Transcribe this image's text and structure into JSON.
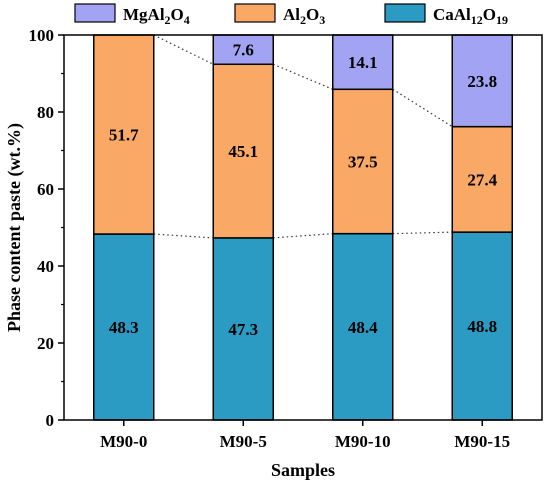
{
  "chart_data": {
    "type": "bar",
    "stacked": true,
    "categories": [
      "M90-0",
      "M90-5",
      "M90-10",
      "M90-15"
    ],
    "series": [
      {
        "name": "CaAl12O19",
        "color": "#2b9bc4",
        "values": [
          48.3,
          47.3,
          48.4,
          48.8
        ],
        "labels": [
          "48.3",
          "47.3",
          "48.4",
          "48.8"
        ]
      },
      {
        "name": "Al2O3",
        "color": "#f9a866",
        "values": [
          51.7,
          45.1,
          37.5,
          27.4
        ],
        "labels": [
          "51.7",
          "45.1",
          "37.5",
          "27.4"
        ]
      },
      {
        "name": "MgAl2O4",
        "color": "#a3a3f4",
        "values": [
          0,
          7.6,
          14.1,
          23.8
        ],
        "labels": [
          "",
          "7.6",
          "14.1",
          "23.8"
        ]
      }
    ],
    "legend": [
      {
        "base": "MgAl",
        "sub1": "2",
        "mid": "O",
        "sub2": "4",
        "color": "#a3a3f4"
      },
      {
        "base": "Al",
        "sub1": "2",
        "mid": "O",
        "sub2": "3",
        "color": "#f9a866"
      },
      {
        "base": "CaAl",
        "sub1": "12",
        "mid": "O",
        "sub2": "19",
        "color": "#2b9bc4"
      }
    ],
    "legend_position": "top",
    "xlabel": "Samples",
    "ylabel": "Phase content paste (wt.%)",
    "ylim": [
      0,
      100
    ],
    "yticks": [
      0,
      20,
      40,
      60,
      80,
      100
    ],
    "connector_lines": "dotted",
    "grid": false
  }
}
